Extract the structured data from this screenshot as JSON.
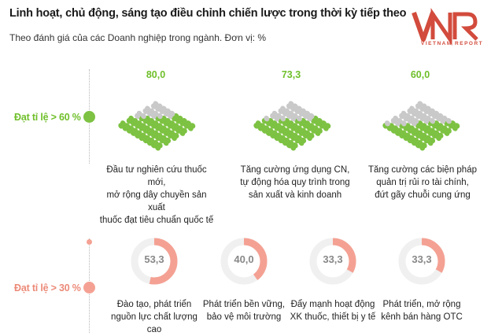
{
  "header": {
    "title": "Linh hoạt, chủ động, sáng tạo điều chỉnh chiến lược trong thời kỳ tiếp theo",
    "subtitle": "Theo đánh giá của các Doanh nghiệp trong ngành. Đơn vị: %"
  },
  "logo": {
    "text": "VNR",
    "tagline": "VIETNAM REPORT",
    "color": "#d24b3c"
  },
  "colors": {
    "green": "#7dc242",
    "green_text": "#6fbf2a",
    "gray": "#c9c9c9",
    "red": "#f4a193",
    "red_track": "#f0f0f0"
  },
  "groups": {
    "high": {
      "label": "Đạt tỉ lệ > 60 %"
    },
    "low": {
      "label": "Đạt tỉ lệ > 30 %"
    }
  },
  "chart_data": [
    {
      "type": "pictogram",
      "group": "Đạt tỉ lệ > 60 %",
      "categories": [
        "Đầu tư nghiên cứu thuốc mới, mở rộng dây chuyền sản xuất thuốc đạt tiêu chuẩn quốc tế",
        "Tăng cường ứng dụng CN, tự động hóa quy trình trong sản xuất và kinh doanh",
        "Tăng cường các biện pháp quản trị rủi ro tài chính, đứt gãy chuỗi cung ứng"
      ],
      "values": [
        80.0,
        73.3,
        60.0
      ],
      "value_labels": [
        "80,0",
        "73,3",
        "60,0"
      ]
    },
    {
      "type": "donut",
      "group": "Đạt tỉ lệ > 30 %",
      "categories": [
        "Đào tạo, phát triển nguồn lực chất lượng cao",
        "Phát triển bền vững, bảo vệ môi trường",
        "Đẩy mạnh hoạt động XK thuốc, thiết bị y tế",
        "Phát triển, mở rộng kênh bán hàng OTC"
      ],
      "values": [
        53.3,
        40.0,
        33.3,
        33.3
      ],
      "value_labels": [
        "53,3",
        "40,0",
        "33,3",
        "33,3"
      ]
    }
  ],
  "labels": {
    "g0": [
      "Đầu tư nghiên cứu thuốc mới,",
      "mở rộng dây chuyền sản xuất",
      "thuốc đạt tiêu chuẩn quốc tế"
    ],
    "g1": [
      "Tăng cường ứng dụng CN,",
      "tự động hóa quy trình trong",
      "sản xuất và kinh doanh"
    ],
    "g2": [
      "Tăng cường các biện pháp",
      "quản trị rủi ro tài chính,",
      "đứt gãy chuỗi cung ứng"
    ],
    "r0": [
      "Đào tạo, phát triển",
      "nguồn lực chất lượng cao"
    ],
    "r1": [
      "Phát triển bền vững,",
      "bảo vệ môi trường"
    ],
    "r2": [
      "Đẩy mạnh hoạt động",
      "XK thuốc, thiết bị y tế"
    ],
    "r3": [
      "Phát triển, mở rộng",
      "kênh bán hàng OTC"
    ]
  }
}
